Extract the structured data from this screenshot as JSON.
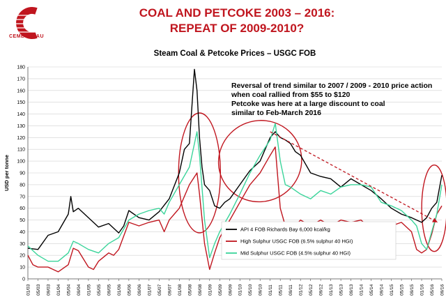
{
  "header": {
    "title_line1": "COAL AND PETCOKE 2003 – 2016:",
    "title_line2": "REPEAT OF 2009-2010?",
    "logo_text": "CEMBUREAU"
  },
  "chart_data": {
    "type": "line",
    "title": "Steam Coal & Petcoke Prices – USGC FOB",
    "ylabel": "USD per tonne",
    "xlabel": "",
    "ylim": [
      0,
      180
    ],
    "yticks": [
      0,
      10,
      20,
      30,
      40,
      50,
      60,
      70,
      80,
      90,
      100,
      110,
      120,
      130,
      140,
      150,
      160,
      170,
      180
    ],
    "x_range": [
      "01/03",
      "09/16"
    ],
    "xtick_labels": [
      "01/03",
      "05/03",
      "09/03",
      "01/04",
      "05/04",
      "09/04",
      "01/05",
      "05/05",
      "09/05",
      "01/06",
      "05/06",
      "09/06",
      "01/07",
      "05/07",
      "09/07",
      "01/08",
      "05/08",
      "09/08",
      "01/09",
      "05/09",
      "09/09",
      "01/10",
      "05/10",
      "09/10",
      "01/11",
      "05/11",
      "09/11",
      "01/12",
      "05/12",
      "09/12",
      "01/13",
      "05/13",
      "09/13",
      "01/14",
      "05/14",
      "09/14",
      "01/15",
      "05/15",
      "09/15",
      "01/16",
      "05/16",
      "09/16"
    ],
    "grid": true,
    "legend_position": "bottom-right",
    "series": [
      {
        "name": "API 4 FOB Richards Bay 6,000 kcal/kg",
        "color": "#000000",
        "points": [
          [
            "01/03",
            26
          ],
          [
            "05/03",
            25
          ],
          [
            "09/03",
            37
          ],
          [
            "01/04",
            40
          ],
          [
            "05/04",
            55
          ],
          [
            "06/04",
            70
          ],
          [
            "07/04",
            57
          ],
          [
            "09/04",
            60
          ],
          [
            "01/05",
            52
          ],
          [
            "05/05",
            44
          ],
          [
            "09/05",
            47
          ],
          [
            "01/06",
            39
          ],
          [
            "03/06",
            45
          ],
          [
            "05/06",
            58
          ],
          [
            "09/06",
            52
          ],
          [
            "01/07",
            50
          ],
          [
            "05/07",
            57
          ],
          [
            "09/07",
            68
          ],
          [
            "01/08",
            90
          ],
          [
            "03/08",
            110
          ],
          [
            "05/08",
            115
          ],
          [
            "07/08",
            178
          ],
          [
            "08/08",
            160
          ],
          [
            "09/08",
            120
          ],
          [
            "10/08",
            95
          ],
          [
            "11/08",
            80
          ],
          [
            "01/09",
            75
          ],
          [
            "03/09",
            62
          ],
          [
            "05/09",
            60
          ],
          [
            "07/09",
            65
          ],
          [
            "09/09",
            68
          ],
          [
            "01/10",
            80
          ],
          [
            "05/10",
            92
          ],
          [
            "09/10",
            100
          ],
          [
            "01/11",
            120
          ],
          [
            "03/11",
            125
          ],
          [
            "05/11",
            120
          ],
          [
            "07/11",
            118
          ],
          [
            "09/11",
            115
          ],
          [
            "11/11",
            108
          ],
          [
            "01/12",
            105
          ],
          [
            "05/12",
            90
          ],
          [
            "09/12",
            87
          ],
          [
            "01/13",
            85
          ],
          [
            "05/13",
            78
          ],
          [
            "09/13",
            85
          ],
          [
            "01/14",
            80
          ],
          [
            "05/14",
            75
          ],
          [
            "09/14",
            68
          ],
          [
            "01/15",
            60
          ],
          [
            "05/15",
            55
          ],
          [
            "09/15",
            52
          ],
          [
            "01/16",
            48
          ],
          [
            "03/16",
            52
          ],
          [
            "05/16",
            60
          ],
          [
            "07/16",
            65
          ],
          [
            "09/16",
            88
          ]
        ]
      },
      {
        "name": "High Sulphur USGC FOB (6.5% sulphur 40 HGI)",
        "color": "#c0151e",
        "points": [
          [
            "01/03",
            20
          ],
          [
            "03/03",
            12
          ],
          [
            "05/03",
            10
          ],
          [
            "09/03",
            10
          ],
          [
            "01/04",
            6
          ],
          [
            "05/04",
            12
          ],
          [
            "07/04",
            26
          ],
          [
            "09/04",
            24
          ],
          [
            "01/05",
            10
          ],
          [
            "03/05",
            8
          ],
          [
            "05/05",
            15
          ],
          [
            "09/05",
            22
          ],
          [
            "11/05",
            20
          ],
          [
            "01/06",
            25
          ],
          [
            "05/06",
            48
          ],
          [
            "09/06",
            45
          ],
          [
            "01/07",
            48
          ],
          [
            "05/07",
            50
          ],
          [
            "07/07",
            40
          ],
          [
            "09/07",
            50
          ],
          [
            "01/08",
            60
          ],
          [
            "05/08",
            80
          ],
          [
            "08/08",
            90
          ],
          [
            "09/08",
            72
          ],
          [
            "11/08",
            30
          ],
          [
            "01/09",
            8
          ],
          [
            "03/09",
            22
          ],
          [
            "05/09",
            35
          ],
          [
            "09/09",
            50
          ],
          [
            "01/10",
            65
          ],
          [
            "05/10",
            80
          ],
          [
            "09/10",
            90
          ],
          [
            "01/11",
            105
          ],
          [
            "03/11",
            112
          ],
          [
            "05/11",
            60
          ],
          [
            "07/11",
            45
          ],
          [
            "09/11",
            40
          ],
          [
            "01/12",
            50
          ],
          [
            "05/12",
            45
          ],
          [
            "09/12",
            50
          ],
          [
            "01/13",
            45
          ],
          [
            "05/13",
            50
          ],
          [
            "09/13",
            48
          ],
          [
            "01/14",
            50
          ],
          [
            "05/14",
            42
          ],
          [
            "09/14",
            47
          ],
          [
            "01/15",
            45
          ],
          [
            "05/15",
            48
          ],
          [
            "09/15",
            40
          ],
          [
            "11/15",
            25
          ],
          [
            "01/16",
            22
          ],
          [
            "03/16",
            25
          ],
          [
            "05/16",
            38
          ],
          [
            "07/16",
            55
          ],
          [
            "09/16",
            62
          ]
        ]
      },
      {
        "name": "Mid Sulphur USGC FOB (4.5% sulphur 40 HGI)",
        "color": "#3ad49a",
        "points": [
          [
            "01/03",
            28
          ],
          [
            "05/03",
            20
          ],
          [
            "09/03",
            15
          ],
          [
            "01/04",
            15
          ],
          [
            "05/04",
            22
          ],
          [
            "07/04",
            32
          ],
          [
            "09/04",
            30
          ],
          [
            "01/05",
            25
          ],
          [
            "05/05",
            22
          ],
          [
            "09/05",
            30
          ],
          [
            "01/06",
            35
          ],
          [
            "05/06",
            50
          ],
          [
            "09/06",
            55
          ],
          [
            "01/07",
            58
          ],
          [
            "05/07",
            60
          ],
          [
            "07/07",
            55
          ],
          [
            "09/07",
            65
          ],
          [
            "01/08",
            80
          ],
          [
            "05/08",
            95
          ],
          [
            "08/08",
            125
          ],
          [
            "09/08",
            105
          ],
          [
            "11/08",
            50
          ],
          [
            "01/09",
            18
          ],
          [
            "03/09",
            30
          ],
          [
            "05/09",
            40
          ],
          [
            "09/09",
            55
          ],
          [
            "01/10",
            72
          ],
          [
            "05/10",
            90
          ],
          [
            "09/10",
            105
          ],
          [
            "01/11",
            118
          ],
          [
            "03/11",
            132
          ],
          [
            "05/11",
            100
          ],
          [
            "07/11",
            80
          ],
          [
            "09/11",
            78
          ],
          [
            "01/12",
            72
          ],
          [
            "05/12",
            68
          ],
          [
            "09/12",
            75
          ],
          [
            "01/13",
            72
          ],
          [
            "05/13",
            78
          ],
          [
            "09/13",
            80
          ],
          [
            "01/14",
            80
          ],
          [
            "05/14",
            78
          ],
          [
            "09/14",
            65
          ],
          [
            "01/15",
            62
          ],
          [
            "05/15",
            58
          ],
          [
            "09/15",
            50
          ],
          [
            "11/15",
            45
          ],
          [
            "01/16",
            30
          ],
          [
            "03/16",
            25
          ],
          [
            "05/16",
            40
          ],
          [
            "07/16",
            55
          ],
          [
            "09/16",
            80
          ]
        ]
      }
    ],
    "annotations": [
      "Reversal of trend similar to  2007 / 2009 - 2010 price action",
      "when coal rallied from $55 to $120",
      "Petcoke was here at a large discount to coal",
      "similar to Feb-March 2016"
    ],
    "trend_arrow": {
      "from": [
        "01/11",
        125
      ],
      "to": [
        "09/16",
        48
      ],
      "color": "#c0151e"
    },
    "highlight_ellipses": [
      {
        "center": [
          "09/08",
          90
        ],
        "color": "#c0151e"
      },
      {
        "center": [
          "09/10",
          100
        ],
        "color": "#c0151e"
      },
      {
        "center": [
          "06/16",
          60
        ],
        "color": "#c0151e"
      }
    ]
  }
}
